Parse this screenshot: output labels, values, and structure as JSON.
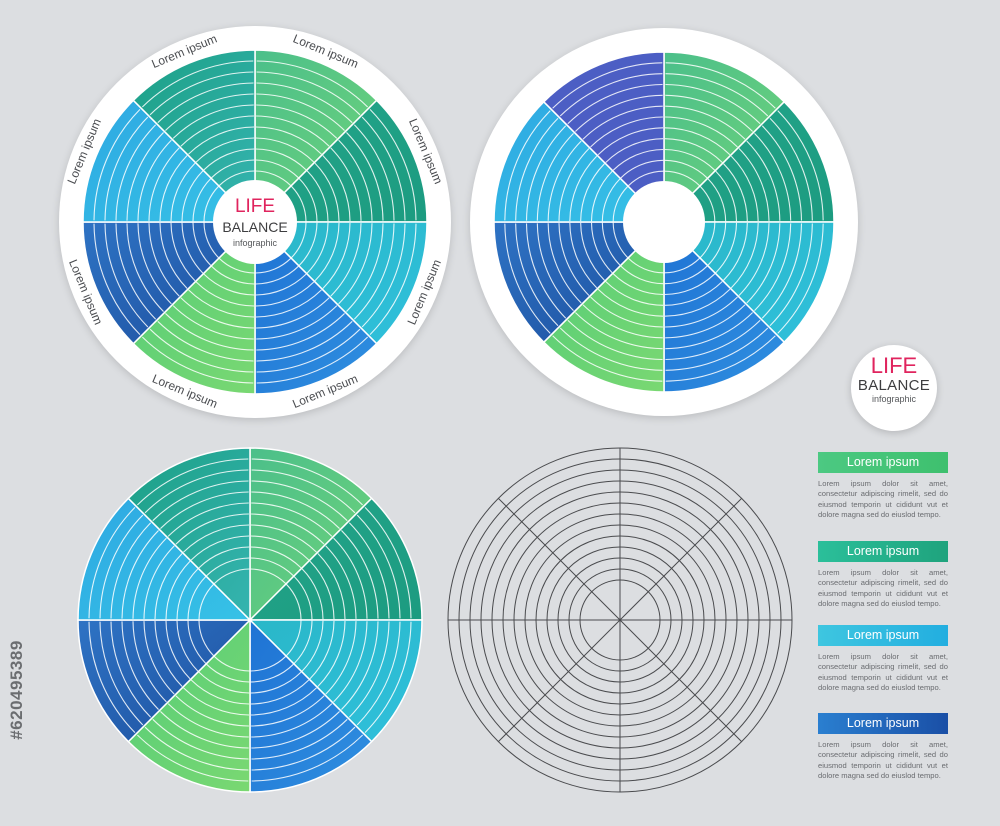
{
  "center_badge": {
    "line1": "LIFE",
    "line2": "BALANCE",
    "line3": "infographic"
  },
  "standalone_badge": {
    "line1": "LIFE",
    "line2": "BALANCE",
    "line3": "infographic"
  },
  "segment_labels": [
    "Lorem ipsum",
    "Lorem ipsum",
    "Lorem ipsum",
    "Lorem ipsum",
    "Lorem ipsum",
    "Lorem ipsum",
    "Lorem ipsum",
    "Lorem ipsum"
  ],
  "legend": [
    {
      "title": "Lorem ipsum",
      "text": "Lorem ipsum dolor sit amet, consectetur adipiscing rimelit, sed do eiusmod temporin ut cididunt vut et dolore magna sed do eiuslod tempo.",
      "color_from": "#4cc982",
      "color_to": "#3ec06e"
    },
    {
      "title": "Lorem ipsum",
      "text": "Lorem ipsum dolor sit amet, consectetur adipiscing rimelit, sed do eiusmod temporin ut cididunt vut et dolore magna sed do eiuslod tempo.",
      "color_from": "#2bbf9a",
      "color_to": "#1fa37d"
    },
    {
      "title": "Lorem ipsum",
      "text": "Lorem ipsum dolor sit amet, consectetur adipiscing rimelit, sed do eiusmod temporin ut cididunt vut et dolore magna sed do eiuslod tempo.",
      "color_from": "#3ec6e0",
      "color_to": "#22aee0"
    },
    {
      "title": "Lorem ipsum",
      "text": "Lorem ipsum dolor sit amet, consectetur adipiscing rimelit, sed do eiusmod temporin ut cididunt vut et dolore magna sed do eiuslod tempo.",
      "color_from": "#2a7fd0",
      "color_to": "#1a4fa6"
    }
  ],
  "segment_colors": [
    {
      "name": "green",
      "from": "#4bbf8a",
      "to": "#6fd37a"
    },
    {
      "name": "teal",
      "from": "#23a58a",
      "to": "#1c9b80"
    },
    {
      "name": "cyan",
      "from": "#2ab7c8",
      "to": "#2fc0dc"
    },
    {
      "name": "blue",
      "from": "#1f73d4",
      "to": "#2f8fe0"
    },
    {
      "name": "light-green",
      "from": "#54cc78",
      "to": "#7ad872"
    },
    {
      "name": "navy",
      "from": "#2e73c4",
      "to": "#1d4f9e"
    },
    {
      "name": "sky",
      "from": "#2ea8e2",
      "to": "#36c2e6"
    },
    {
      "name": "sea",
      "from": "#1ca086",
      "to": "#35b4b0"
    }
  ],
  "indigo_color": "#4c5ec4",
  "ring_count": 12,
  "sector_count": 8,
  "watermark_id": "#620495389"
}
